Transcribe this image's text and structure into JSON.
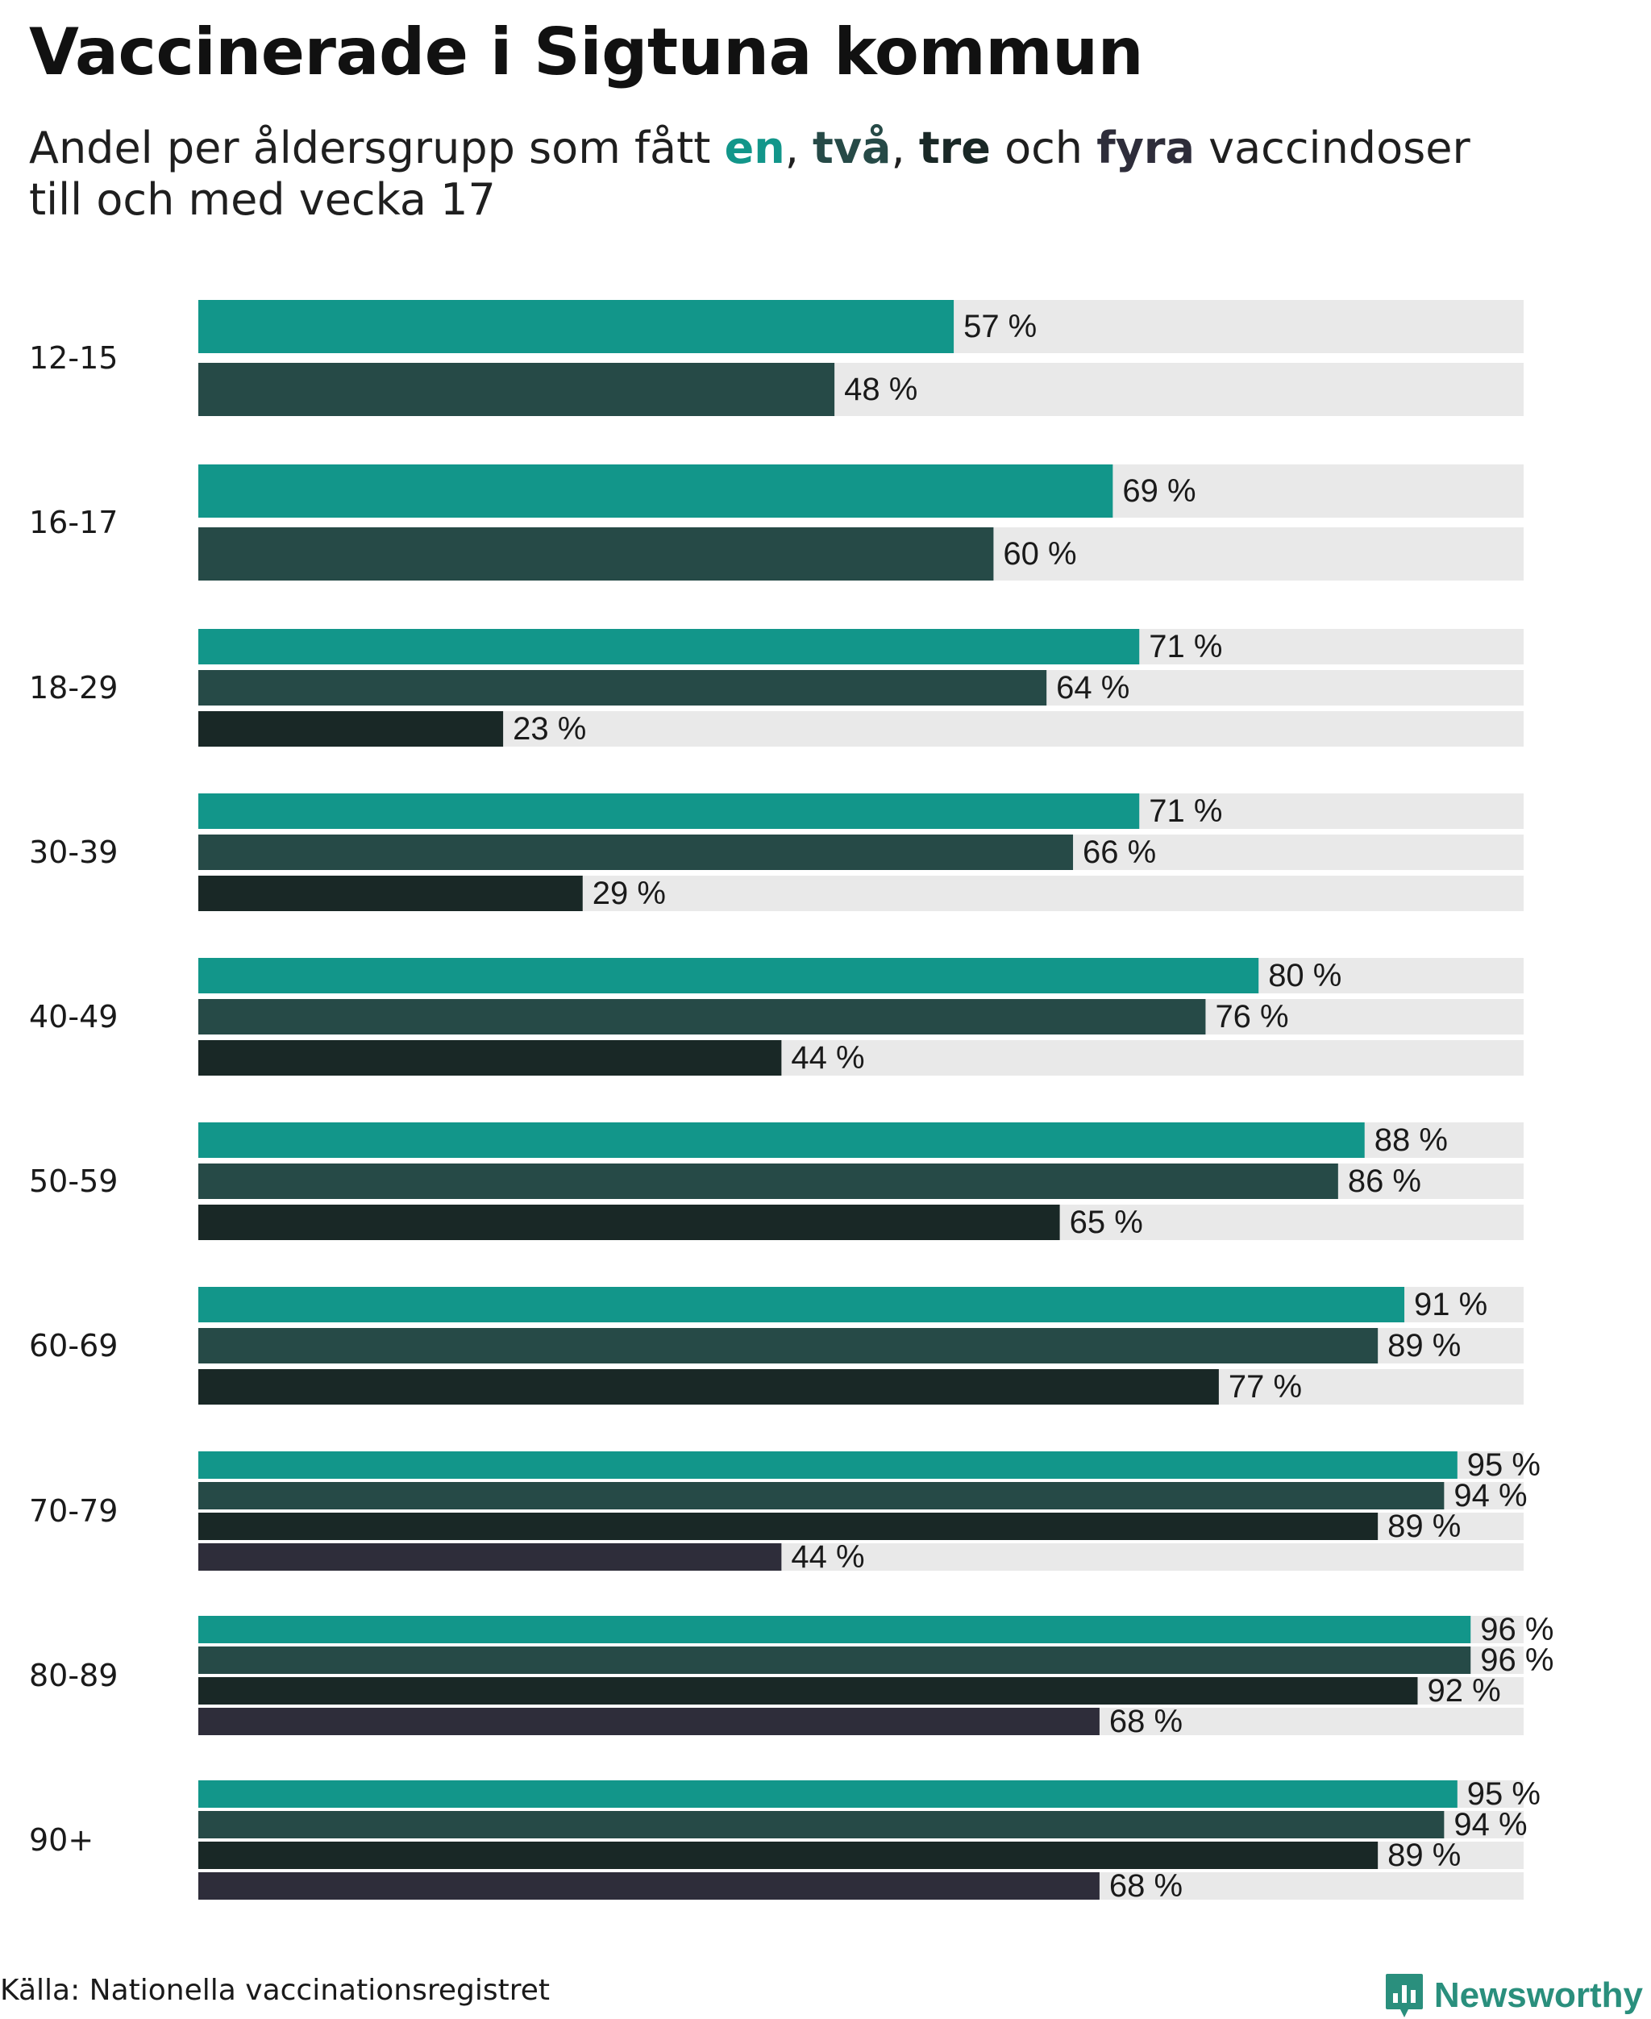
{
  "chart_data": {
    "type": "bar",
    "orientation": "horizontal",
    "title": "Vaccinerade i Sigtuna kommun",
    "subtitle": {
      "prefix": "Andel per åldersgrupp som fått ",
      "en": "en",
      "sep1": ", ",
      "tva": "två",
      "sep2": ", ",
      "tre": "tre",
      "och": " och ",
      "fyra": "fyra",
      "suffix": " vaccindoser",
      "line2": "till och med vecka 17"
    },
    "xlim": [
      0,
      100
    ],
    "value_suffix": " %",
    "series": [
      {
        "name": "en",
        "color": "#12968a"
      },
      {
        "name": "två",
        "color": "#264a47"
      },
      {
        "name": "tre",
        "color": "#192826"
      },
      {
        "name": "fyra",
        "color": "#2e2d3a"
      }
    ],
    "background_color": "#e9e9e9",
    "categories": [
      {
        "label": "12-15",
        "values": [
          57,
          48
        ]
      },
      {
        "label": "16-17",
        "values": [
          69,
          60
        ]
      },
      {
        "label": "18-29",
        "values": [
          71,
          64,
          23
        ]
      },
      {
        "label": "30-39",
        "values": [
          71,
          66,
          29
        ]
      },
      {
        "label": "40-49",
        "values": [
          80,
          76,
          44
        ]
      },
      {
        "label": "50-59",
        "values": [
          88,
          86,
          65
        ]
      },
      {
        "label": "60-69",
        "values": [
          91,
          89,
          77
        ]
      },
      {
        "label": "70-79",
        "values": [
          95,
          94,
          89,
          44
        ]
      },
      {
        "label": "80-89",
        "values": [
          96,
          96,
          92,
          68
        ]
      },
      {
        "label": "90+",
        "values": [
          95,
          94,
          89,
          68
        ]
      }
    ]
  },
  "footer": {
    "source": "Källa: Nationella vaccinationsregistret",
    "brand": "Newsworthy"
  },
  "colors": {
    "brand": "#2a8f7d"
  }
}
